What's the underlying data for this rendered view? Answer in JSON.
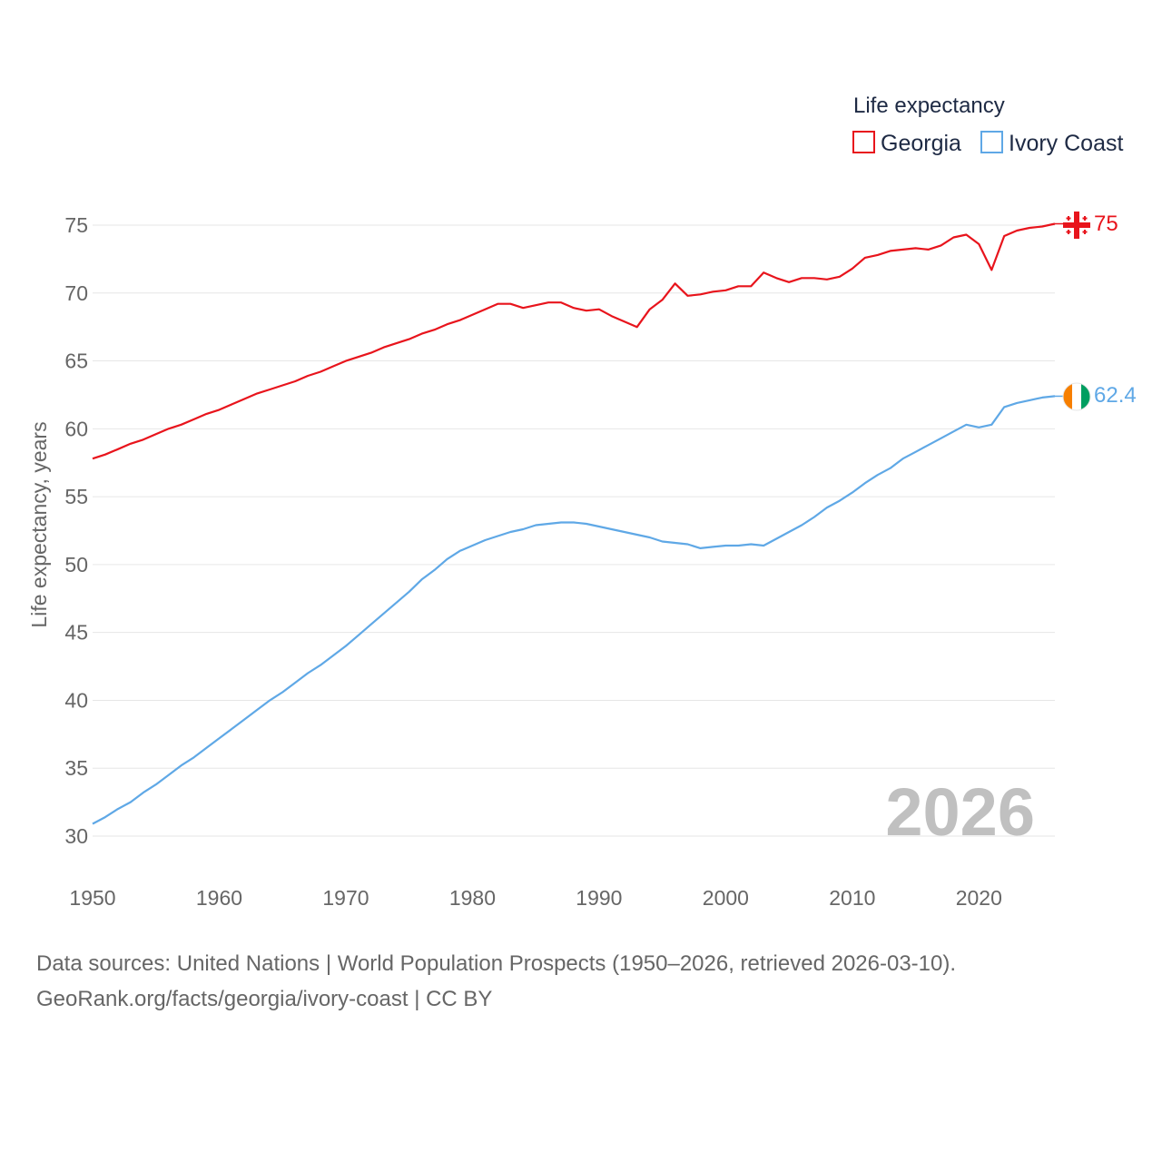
{
  "chart_data": {
    "type": "line",
    "title": "",
    "xlabel": "",
    "ylabel": "Life expectancy, years",
    "xlim": [
      1950,
      2026
    ],
    "ylim": [
      30,
      76
    ],
    "x_ticks": [
      "1950",
      "1960",
      "1970",
      "1980",
      "1990",
      "2000",
      "2010",
      "2020"
    ],
    "y_ticks": [
      "30",
      "35",
      "40",
      "45",
      "50",
      "55",
      "60",
      "65",
      "70",
      "75"
    ],
    "grid": true,
    "legend_title": "Life expectancy",
    "legend_position": "top-right",
    "year_label": "2026",
    "x": [
      1950,
      1951,
      1952,
      1953,
      1954,
      1955,
      1956,
      1957,
      1958,
      1959,
      1960,
      1961,
      1962,
      1963,
      1964,
      1965,
      1966,
      1967,
      1968,
      1969,
      1970,
      1971,
      1972,
      1973,
      1974,
      1975,
      1976,
      1977,
      1978,
      1979,
      1980,
      1981,
      1982,
      1983,
      1984,
      1985,
      1986,
      1987,
      1988,
      1989,
      1990,
      1991,
      1992,
      1993,
      1994,
      1995,
      1996,
      1997,
      1998,
      1999,
      2000,
      2001,
      2002,
      2003,
      2004,
      2005,
      2006,
      2007,
      2008,
      2009,
      2010,
      2011,
      2012,
      2013,
      2014,
      2015,
      2016,
      2017,
      2018,
      2019,
      2020,
      2021,
      2022,
      2023,
      2024,
      2025,
      2026
    ],
    "series": [
      {
        "name": "Georgia",
        "color": "#e8141c",
        "end_label": "75",
        "values": [
          57.8,
          58.1,
          58.5,
          58.9,
          59.2,
          59.6,
          60.0,
          60.3,
          60.7,
          61.1,
          61.4,
          61.8,
          62.2,
          62.6,
          62.9,
          63.2,
          63.5,
          63.9,
          64.2,
          64.6,
          65.0,
          65.3,
          65.6,
          66.0,
          66.3,
          66.6,
          67.0,
          67.3,
          67.7,
          68.0,
          68.4,
          68.8,
          69.2,
          69.2,
          68.9,
          69.1,
          69.3,
          69.3,
          68.9,
          68.7,
          68.8,
          68.3,
          67.9,
          67.5,
          68.8,
          69.5,
          70.7,
          69.8,
          69.9,
          70.1,
          70.2,
          70.5,
          70.5,
          71.5,
          71.1,
          70.8,
          71.1,
          71.1,
          71.0,
          71.2,
          71.8,
          72.6,
          72.8,
          73.1,
          73.2,
          73.3,
          73.2,
          73.5,
          74.1,
          74.3,
          73.6,
          71.7,
          74.2,
          74.6,
          74.8,
          74.9,
          75.1
        ]
      },
      {
        "name": "Ivory Coast",
        "color": "#5fa8e6",
        "end_label": "62.4",
        "values": [
          30.9,
          31.4,
          32.0,
          32.5,
          33.2,
          33.8,
          34.5,
          35.2,
          35.8,
          36.5,
          37.2,
          37.9,
          38.6,
          39.3,
          40.0,
          40.6,
          41.3,
          42.0,
          42.6,
          43.3,
          44.0,
          44.8,
          45.6,
          46.4,
          47.2,
          48.0,
          48.9,
          49.6,
          50.4,
          51.0,
          51.4,
          51.8,
          52.1,
          52.4,
          52.6,
          52.9,
          53.0,
          53.1,
          53.1,
          53.0,
          52.8,
          52.6,
          52.4,
          52.2,
          52.0,
          51.7,
          51.6,
          51.5,
          51.2,
          51.3,
          51.4,
          51.4,
          51.5,
          51.4,
          51.9,
          52.4,
          52.9,
          53.5,
          54.2,
          54.7,
          55.3,
          56.0,
          56.6,
          57.1,
          57.8,
          58.3,
          58.8,
          59.3,
          59.8,
          60.3,
          60.1,
          60.3,
          61.6,
          61.9,
          62.1,
          62.3,
          62.4
        ]
      }
    ]
  },
  "footer": {
    "source_line_1": "Data sources: United Nations | World Population Prospects (1950–2026, retrieved 2026-03-10).",
    "source_line_2": "GeoRank.org/facts/georgia/ivory-coast | CC BY"
  }
}
